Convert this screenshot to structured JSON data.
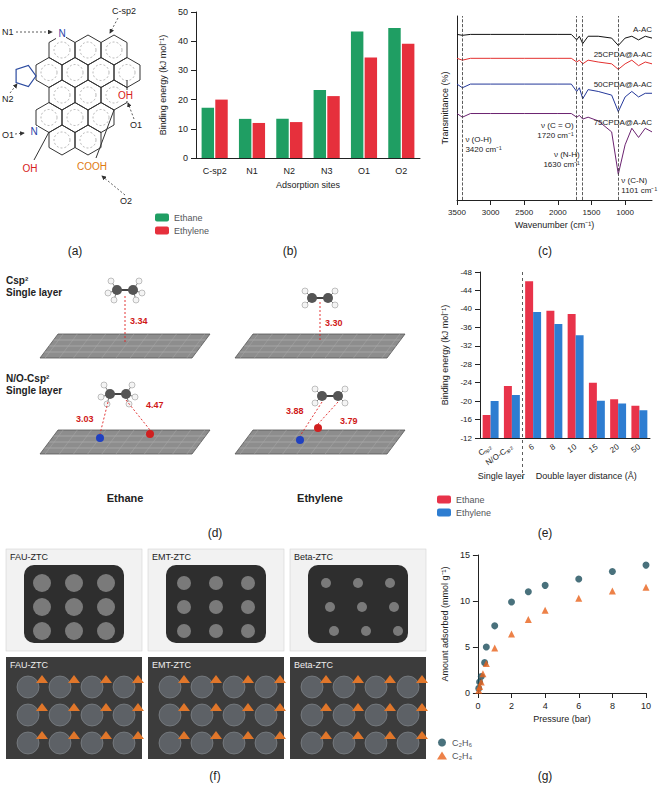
{
  "panel_labels": [
    "(a)",
    "(b)",
    "(c)",
    "(d)",
    "(e)",
    "(f)",
    "(g)"
  ],
  "diagrams": {
    "a": {
      "sites": [
        "N1",
        "C-sp2",
        "N2",
        "O1",
        "O1",
        "O2"
      ],
      "atoms": [
        "N",
        "N",
        "OH",
        "OH",
        "COOH"
      ]
    },
    "d": {
      "rows": [
        [
          "Csp²",
          "Single layer"
        ],
        [
          "N/O-Csp²",
          "Single layer"
        ]
      ],
      "distances": [
        [
          "3.34",
          "3.30"
        ],
        [
          "3.03",
          "4.47",
          "3.88",
          "3.79"
        ]
      ],
      "columns": [
        "Ethane",
        "Ethylene"
      ]
    },
    "f": {
      "rows": [
        [
          "FAU-ZTC",
          "EMT-ZTC",
          "Beta-ZTC"
        ],
        [
          "FAU-ZTC",
          "EMT-ZTC",
          "Beta-ZTC"
        ]
      ]
    }
  },
  "chart_data": [
    {
      "type": "bar",
      "categories": [
        "C-sp2",
        "N1",
        "N2",
        "N3",
        "O1",
        "O2"
      ],
      "series": [
        {
          "name": "Ethane",
          "color": "#1f9e63",
          "values": [
            17.2,
            13.4,
            13.4,
            23.3,
            43.3,
            44.5
          ]
        },
        {
          "name": "Ethylene",
          "color": "#e6303c",
          "values": [
            20.0,
            12.0,
            12.3,
            21.2,
            34.4,
            39.1
          ]
        }
      ],
      "xlabel": "Adsorption sites",
      "ylabel": "Binding energy (kJ mol⁻¹)",
      "ylim": [
        0,
        50
      ],
      "yticks": [
        0,
        10,
        20,
        30,
        40,
        50
      ],
      "legend": "bottom-left",
      "grid": false
    },
    {
      "type": "line",
      "x": [
        3500,
        3420,
        3300,
        3000,
        2500,
        2000,
        1800,
        1720,
        1680,
        1630,
        1550,
        1400,
        1200,
        1101,
        1000,
        900,
        800,
        700,
        600
      ],
      "series": [
        {
          "name": "A-AC",
          "color": "#111111",
          "values": [
            90,
            89.5,
            90,
            90,
            90,
            90,
            90,
            87,
            89,
            85,
            89,
            89,
            88,
            84,
            88,
            89,
            87,
            89,
            88
          ]
        },
        {
          "name": "25CPDA@A-AC",
          "color": "#e3302f",
          "values": [
            77,
            76,
            77,
            77,
            77,
            77,
            77,
            75,
            76,
            74,
            76,
            75,
            74,
            71,
            74,
            76,
            73,
            75,
            74
          ]
        },
        {
          "name": "50CPDA@A-AC",
          "color": "#24389a",
          "values": [
            63,
            61,
            63,
            63,
            63,
            63,
            63,
            59,
            61,
            55,
            60,
            59,
            57,
            48,
            56,
            59,
            56,
            58,
            58
          ]
        },
        {
          "name": "75CPDA@A-AC",
          "color": "#6b2370",
          "values": [
            47,
            45,
            47,
            47,
            47,
            47,
            47,
            45,
            46,
            44,
            45,
            43,
            37,
            14,
            30,
            39,
            34,
            39,
            37
          ]
        }
      ],
      "xlabel": "Wavenumber (cm⁻¹)",
      "ylabel": "Transmittance (%)",
      "xlim": [
        3500,
        600
      ],
      "xticks": [
        3500,
        3000,
        2500,
        2000,
        1500,
        1000
      ],
      "ylim": [
        0,
        100
      ],
      "tick_labels": "x",
      "grid": false,
      "annotations": [
        {
          "x": 3420,
          "text": "ν (O-H)\n3420 cm⁻¹"
        },
        {
          "x": 1720,
          "text": "ν (C = O)\n1720 cm⁻¹"
        },
        {
          "x": 1630,
          "text": "ν (N-H)\n1630 cm⁻¹"
        },
        {
          "x": 1101,
          "text": "ν (C-N)\n1101 cm⁻¹"
        }
      ]
    },
    {
      "type": "bar",
      "categories": [
        "Cₛₚ₂",
        "N/O-Cₛₚ₂",
        "6",
        "8",
        "10",
        "15",
        "20",
        "50"
      ],
      "series": [
        {
          "name": "Ethane",
          "color": "#e8334a",
          "values": [
            -17.0,
            -23.3,
            -46.0,
            -39.6,
            -38.9,
            -24.0,
            -20.4,
            -19.0
          ]
        },
        {
          "name": "Ethylene",
          "color": "#2e7dd1",
          "values": [
            -20.0,
            -21.3,
            -39.3,
            -36.7,
            -34.3,
            -20.1,
            -19.5,
            -18.0
          ]
        }
      ],
      "ylabel": "Binding energy (kJ mol⁻¹)",
      "ylim": [
        -12,
        -48
      ],
      "yticks": [
        -12,
        -16,
        -20,
        -24,
        -28,
        -32,
        -36,
        -40,
        -44,
        -48
      ],
      "groups": [
        {
          "label": "Single layer",
          "categories": [
            "Cₛₚ₂",
            "N/O-Cₛₚ₂"
          ]
        },
        {
          "label": "Double layer distance (Å)",
          "categories": [
            "6",
            "8",
            "10",
            "15",
            "20",
            "50"
          ]
        }
      ],
      "legend": "bottom-left",
      "grid": false
    },
    {
      "type": "scatter",
      "series": [
        {
          "name": "C₂H₆",
          "color": "#1c4e5b",
          "marker": "circle",
          "x": [
            0.05,
            0.1,
            0.2,
            0.4,
            0.5,
            1,
            2,
            3,
            4,
            6,
            8,
            10
          ],
          "values": [
            0.5,
            1.2,
            1.8,
            3.3,
            5.0,
            7.3,
            9.9,
            11.0,
            11.7,
            12.4,
            13.2,
            13.9
          ]
        },
        {
          "name": "C₂H₄",
          "color": "#e8621a",
          "marker": "triangle",
          "x": [
            0.05,
            0.1,
            0.2,
            0.3,
            0.5,
            1,
            2,
            3,
            4,
            6,
            8,
            10
          ],
          "values": [
            0.3,
            0.7,
            1.2,
            2.1,
            3.2,
            4.9,
            6.4,
            8.0,
            9.0,
            10.3,
            11.1,
            11.5
          ]
        }
      ],
      "xlabel": "Pressure (bar)",
      "ylabel": "Amount adsorbed (mmol g⁻¹)",
      "xlim": [
        0,
        10
      ],
      "xticks": [
        0,
        2,
        4,
        6,
        8,
        10
      ],
      "ylim": [
        0,
        15
      ],
      "yticks": [
        0,
        5,
        10,
        15
      ],
      "legend": "bottom-left",
      "grid": false
    }
  ]
}
